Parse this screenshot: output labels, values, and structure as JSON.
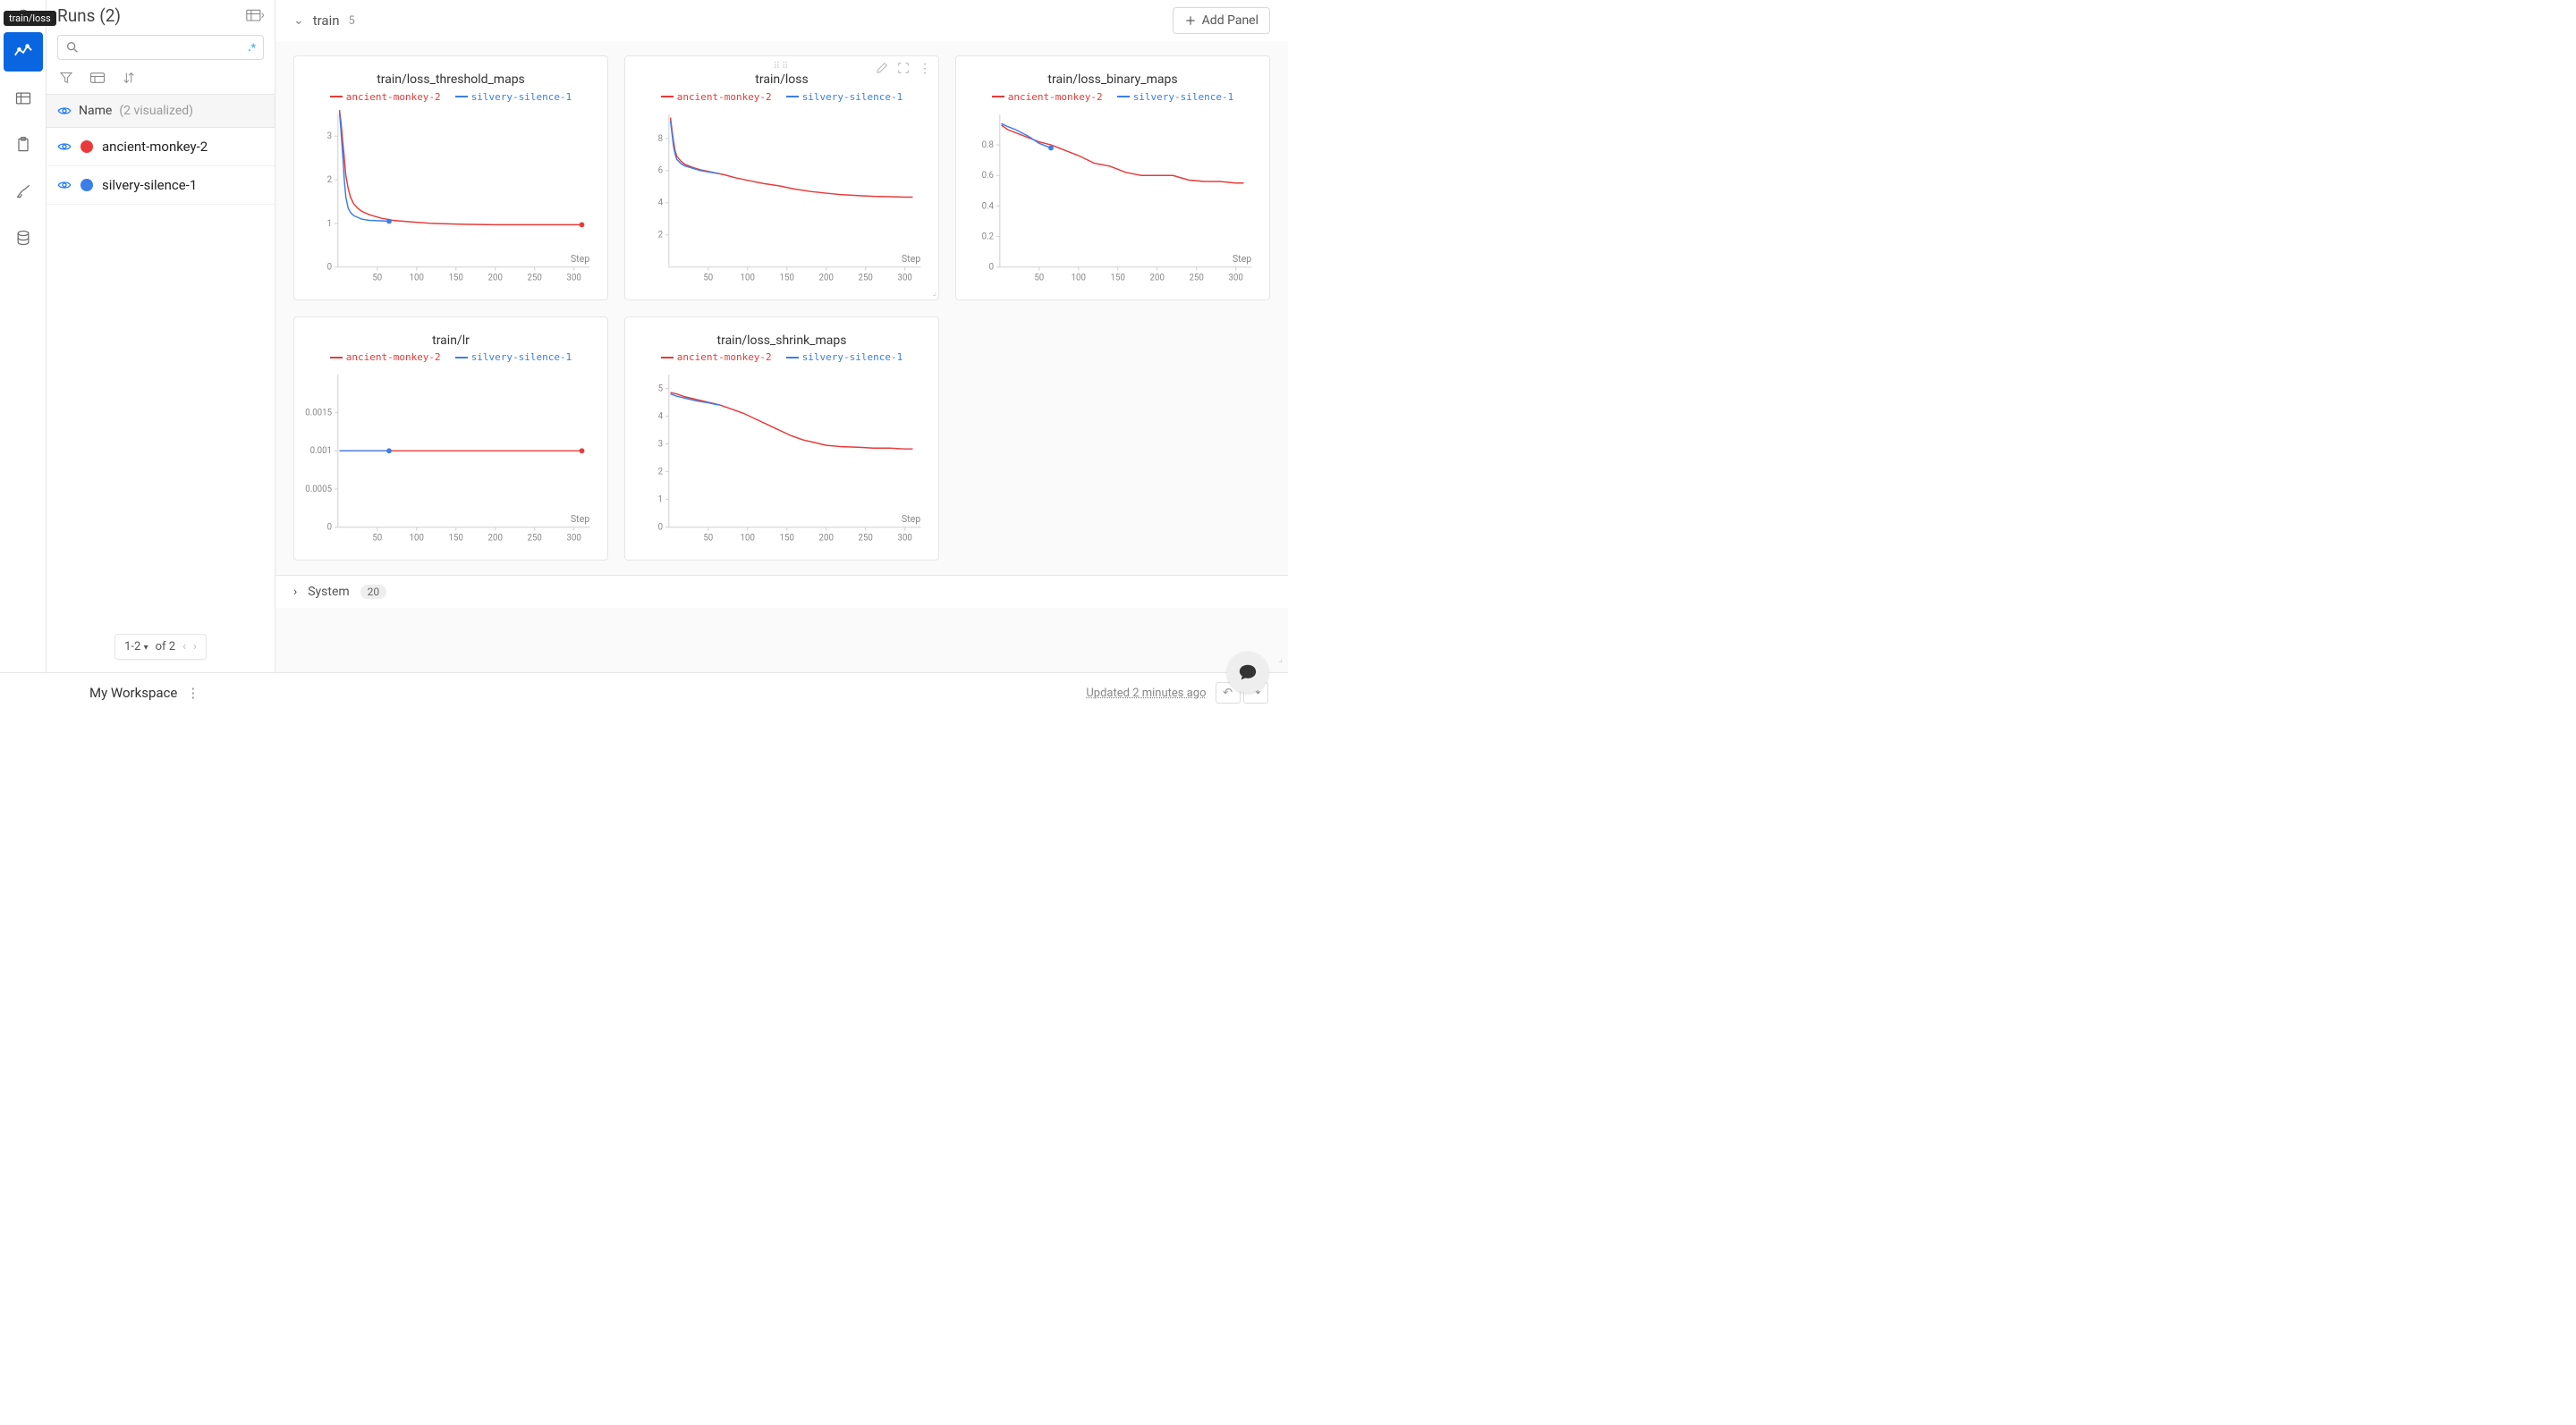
{
  "tooltip": "train/loss",
  "sidebar": {
    "title": "Runs (2)",
    "search_placeholder": "",
    "regex_indicator": ".*",
    "column_header": "Name",
    "visualized_label": "(2 visualized)",
    "pager": {
      "range": "1-2",
      "of_label": "of 2"
    }
  },
  "runs": [
    {
      "name": "ancient-monkey-2",
      "color": "#e83a3a"
    },
    {
      "name": "silvery-silence-1",
      "color": "#3a7ee8"
    }
  ],
  "sections": {
    "train": {
      "name": "train",
      "count": "5"
    },
    "system": {
      "name": "System",
      "count": "20"
    }
  },
  "add_panel_label": "Add Panel",
  "workspace": {
    "name": "My Workspace",
    "updated": "Updated 2 minutes ago"
  },
  "chart_defaults": {
    "x_label": "Step",
    "x_ticks": [
      50,
      100,
      150,
      200,
      250,
      300
    ],
    "xlim": [
      0,
      320
    ],
    "grid_color": "#e6e6e6",
    "axis_color": "#cfcfcf",
    "colors": {
      "ancient-monkey-2": "#e83a3a",
      "silvery-silence-1": "#3a7ee8"
    }
  },
  "panels": [
    {
      "id": "loss_threshold_maps",
      "title": "train/loss_threshold_maps",
      "ylim": [
        0,
        3.5
      ],
      "y_ticks": [
        0,
        1,
        2,
        3
      ],
      "series": {
        "ancient-monkey-2": [
          [
            2,
            3.6
          ],
          [
            4,
            3.3
          ],
          [
            6,
            2.9
          ],
          [
            8,
            2.5
          ],
          [
            10,
            2.1
          ],
          [
            13,
            1.8
          ],
          [
            16,
            1.6
          ],
          [
            20,
            1.45
          ],
          [
            25,
            1.35
          ],
          [
            30,
            1.28
          ],
          [
            40,
            1.2
          ],
          [
            55,
            1.12
          ],
          [
            70,
            1.07
          ],
          [
            90,
            1.04
          ],
          [
            120,
            1.0
          ],
          [
            160,
            0.98
          ],
          [
            200,
            0.97
          ],
          [
            250,
            0.97
          ],
          [
            300,
            0.97
          ],
          [
            310,
            0.97
          ]
        ],
        "silvery-silence-1": [
          [
            2,
            3.55
          ],
          [
            4,
            3.1
          ],
          [
            6,
            2.6
          ],
          [
            8,
            2.0
          ],
          [
            10,
            1.6
          ],
          [
            13,
            1.35
          ],
          [
            16,
            1.25
          ],
          [
            20,
            1.18
          ],
          [
            25,
            1.14
          ],
          [
            30,
            1.1
          ],
          [
            40,
            1.07
          ],
          [
            55,
            1.06
          ],
          [
            65,
            1.05
          ]
        ]
      },
      "end_markers": {
        "ancient-monkey-2": [
          310,
          0.97
        ],
        "silvery-silence-1": [
          65,
          1.05
        ]
      }
    },
    {
      "id": "loss",
      "title": "train/loss",
      "ylim": [
        0,
        9.5
      ],
      "y_ticks": [
        2,
        4,
        6,
        8
      ],
      "hover": true,
      "series": {
        "ancient-monkey-2": [
          [
            2,
            9.3
          ],
          [
            4,
            8.5
          ],
          [
            6,
            7.8
          ],
          [
            8,
            7.2
          ],
          [
            10,
            6.9
          ],
          [
            15,
            6.6
          ],
          [
            20,
            6.4
          ],
          [
            30,
            6.2
          ],
          [
            40,
            6.05
          ],
          [
            55,
            5.9
          ],
          [
            70,
            5.75
          ],
          [
            85,
            5.55
          ],
          [
            100,
            5.4
          ],
          [
            120,
            5.2
          ],
          [
            140,
            5.05
          ],
          [
            160,
            4.85
          ],
          [
            180,
            4.7
          ],
          [
            200,
            4.6
          ],
          [
            220,
            4.5
          ],
          [
            240,
            4.45
          ],
          [
            260,
            4.4
          ],
          [
            280,
            4.38
          ],
          [
            300,
            4.35
          ],
          [
            310,
            4.35
          ]
        ],
        "silvery-silence-1": [
          [
            2,
            9.1
          ],
          [
            4,
            8.3
          ],
          [
            6,
            7.5
          ],
          [
            8,
            7.0
          ],
          [
            10,
            6.7
          ],
          [
            15,
            6.45
          ],
          [
            20,
            6.3
          ],
          [
            30,
            6.15
          ],
          [
            40,
            6.0
          ],
          [
            55,
            5.88
          ],
          [
            65,
            5.8
          ]
        ]
      }
    },
    {
      "id": "loss_binary_maps",
      "title": "train/loss_binary_maps",
      "ylim": [
        0,
        1.0
      ],
      "y_ticks": [
        0,
        0.2,
        0.4,
        0.6,
        0.8
      ],
      "series": {
        "ancient-monkey-2": [
          [
            2,
            0.93
          ],
          [
            10,
            0.9
          ],
          [
            20,
            0.88
          ],
          [
            35,
            0.85
          ],
          [
            50,
            0.82
          ],
          [
            65,
            0.8
          ],
          [
            80,
            0.77
          ],
          [
            100,
            0.73
          ],
          [
            120,
            0.68
          ],
          [
            140,
            0.66
          ],
          [
            160,
            0.62
          ],
          [
            180,
            0.6
          ],
          [
            200,
            0.6
          ],
          [
            220,
            0.6
          ],
          [
            240,
            0.57
          ],
          [
            260,
            0.56
          ],
          [
            280,
            0.56
          ],
          [
            300,
            0.55
          ],
          [
            310,
            0.55
          ]
        ],
        "silvery-silence-1": [
          [
            2,
            0.94
          ],
          [
            10,
            0.92
          ],
          [
            20,
            0.9
          ],
          [
            35,
            0.86
          ],
          [
            50,
            0.81
          ],
          [
            60,
            0.79
          ],
          [
            65,
            0.78
          ]
        ]
      },
      "end_markers": {
        "silvery-silence-1": [
          65,
          0.78
        ]
      }
    },
    {
      "id": "lr",
      "title": "train/lr",
      "ylim": [
        0,
        0.002
      ],
      "y_ticks": [
        0,
        0.0005,
        0.001,
        0.0015
      ],
      "series": {
        "ancient-monkey-2": [
          [
            2,
            0.001
          ],
          [
            310,
            0.001
          ]
        ],
        "silvery-silence-1": [
          [
            2,
            0.001
          ],
          [
            65,
            0.001
          ]
        ]
      },
      "end_markers": {
        "ancient-monkey-2": [
          310,
          0.001
        ],
        "silvery-silence-1": [
          65,
          0.001
        ]
      }
    },
    {
      "id": "loss_shrink_maps",
      "title": "train/loss_shrink_maps",
      "ylim": [
        0,
        5.5
      ],
      "y_ticks": [
        0,
        1,
        2,
        3,
        4,
        5
      ],
      "series": {
        "ancient-monkey-2": [
          [
            2,
            4.85
          ],
          [
            10,
            4.8
          ],
          [
            20,
            4.7
          ],
          [
            35,
            4.6
          ],
          [
            50,
            4.5
          ],
          [
            65,
            4.4
          ],
          [
            80,
            4.25
          ],
          [
            95,
            4.1
          ],
          [
            110,
            3.9
          ],
          [
            125,
            3.7
          ],
          [
            140,
            3.5
          ],
          [
            155,
            3.3
          ],
          [
            170,
            3.15
          ],
          [
            185,
            3.05
          ],
          [
            200,
            2.95
          ],
          [
            220,
            2.9
          ],
          [
            240,
            2.88
          ],
          [
            260,
            2.85
          ],
          [
            280,
            2.85
          ],
          [
            300,
            2.82
          ],
          [
            310,
            2.82
          ]
        ],
        "silvery-silence-1": [
          [
            2,
            4.8
          ],
          [
            10,
            4.72
          ],
          [
            20,
            4.65
          ],
          [
            35,
            4.55
          ],
          [
            50,
            4.48
          ],
          [
            60,
            4.42
          ],
          [
            65,
            4.4
          ]
        ]
      }
    }
  ]
}
